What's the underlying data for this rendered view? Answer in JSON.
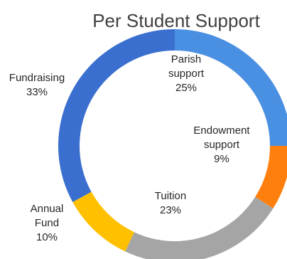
{
  "chart_data": {
    "type": "pie",
    "donut": true,
    "title": "Per Student Support",
    "slices": [
      {
        "name": "Parish support",
        "value": 25,
        "label": "25%",
        "color": "#4a90e2"
      },
      {
        "name": "Endowment support",
        "value": 9,
        "label": "9%",
        "color": "#ff7f0e"
      },
      {
        "name": "Tuition",
        "value": 23,
        "label": "23%",
        "color": "#a5a5a5"
      },
      {
        "name": "Annual Fund",
        "value": 10,
        "label": "10%",
        "color": "#ffc000"
      },
      {
        "name": "Fundraising",
        "value": 33,
        "label": "33%",
        "color": "#3a6fd0"
      }
    ]
  }
}
